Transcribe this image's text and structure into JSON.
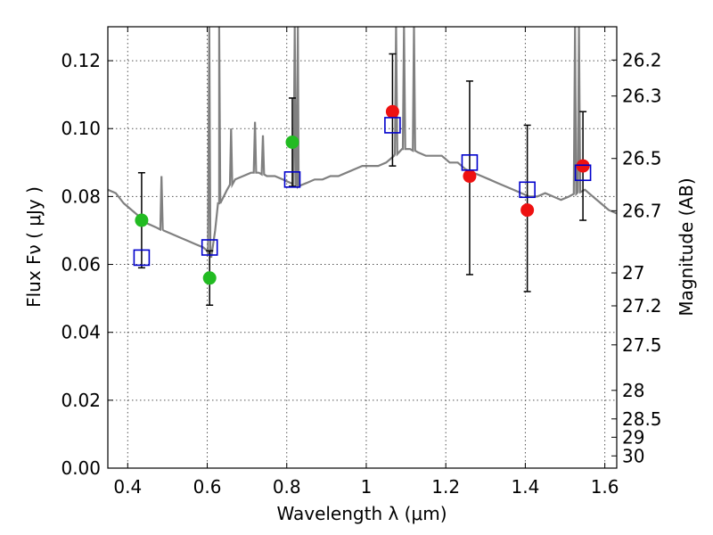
{
  "chart_data": {
    "type": "scatter",
    "title": "",
    "xlabel": "Wavelength  λ (μm)",
    "ylabel": "Flux  Fν  ( μJy )",
    "y2label": "Magnitude (AB)",
    "xlim": [
      0.35,
      1.63
    ],
    "ylim": [
      0.0,
      0.13
    ],
    "grid": true,
    "x_ticks": [
      0.4,
      0.6,
      0.8,
      1.0,
      1.2,
      1.4,
      1.6
    ],
    "x_tick_labels": [
      "0.4",
      "0.6",
      "0.8",
      "1",
      "1.2",
      "1.4",
      "1.6"
    ],
    "y_ticks": [
      0.0,
      0.02,
      0.04,
      0.06,
      0.08,
      0.1,
      0.12
    ],
    "y_tick_labels": [
      "0.00",
      "0.02",
      "0.04",
      "0.06",
      "0.08",
      "0.10",
      "0.12"
    ],
    "mag_ticks": [
      {
        "flux": 0.1202,
        "label": "26.2"
      },
      {
        "flux": 0.1096,
        "label": "26.3"
      },
      {
        "flux": 0.0912,
        "label": "26.5"
      },
      {
        "flux": 0.0758,
        "label": "26.7"
      },
      {
        "flux": 0.0575,
        "label": "27"
      },
      {
        "flux": 0.0478,
        "label": "27.2"
      },
      {
        "flux": 0.0363,
        "label": "27.5"
      },
      {
        "flux": 0.0229,
        "label": "28"
      },
      {
        "flux": 0.0145,
        "label": "28.5"
      },
      {
        "flux": 0.0091,
        "label": "29"
      },
      {
        "flux": 0.0036,
        "label": "30"
      }
    ],
    "colors": {
      "spectrum": "#808080",
      "green": "#22bb22",
      "red": "#ee1111",
      "model_box": "#0000cc",
      "errorbar": "#000000"
    },
    "spectrum": {
      "x": [
        0.35,
        0.37,
        0.39,
        0.41,
        0.43,
        0.45,
        0.47,
        0.49,
        0.51,
        0.53,
        0.55,
        0.57,
        0.59,
        0.6,
        0.61,
        0.62,
        0.63,
        0.65,
        0.67,
        0.69,
        0.71,
        0.73,
        0.75,
        0.77,
        0.79,
        0.81,
        0.83,
        0.85,
        0.87,
        0.89,
        0.91,
        0.93,
        0.95,
        0.97,
        0.99,
        1.01,
        1.03,
        1.05,
        1.07,
        1.09,
        1.11,
        1.13,
        1.15,
        1.17,
        1.19,
        1.21,
        1.23,
        1.25,
        1.27,
        1.29,
        1.31,
        1.33,
        1.35,
        1.37,
        1.39,
        1.41,
        1.43,
        1.45,
        1.47,
        1.49,
        1.51,
        1.53,
        1.55,
        1.57,
        1.59,
        1.61,
        1.63
      ],
      "y": [
        0.082,
        0.081,
        0.078,
        0.076,
        0.074,
        0.072,
        0.071,
        0.07,
        0.069,
        0.068,
        0.067,
        0.066,
        0.065,
        0.064,
        0.062,
        0.07,
        0.078,
        0.082,
        0.085,
        0.086,
        0.087,
        0.087,
        0.086,
        0.086,
        0.085,
        0.084,
        0.083,
        0.084,
        0.085,
        0.085,
        0.086,
        0.086,
        0.087,
        0.088,
        0.089,
        0.089,
        0.089,
        0.09,
        0.092,
        0.094,
        0.094,
        0.093,
        0.092,
        0.092,
        0.092,
        0.09,
        0.09,
        0.088,
        0.087,
        0.086,
        0.085,
        0.084,
        0.083,
        0.082,
        0.081,
        0.08,
        0.08,
        0.081,
        0.08,
        0.079,
        0.08,
        0.081,
        0.082,
        0.08,
        0.078,
        0.076,
        0.075
      ]
    },
    "spectrum_spikes": [
      {
        "x": 0.485,
        "y": 0.086
      },
      {
        "x": 0.605,
        "y": 0.13
      },
      {
        "x": 0.63,
        "y": 0.13
      },
      {
        "x": 0.66,
        "y": 0.1
      },
      {
        "x": 0.72,
        "y": 0.102
      },
      {
        "x": 0.74,
        "y": 0.098
      },
      {
        "x": 0.82,
        "y": 0.13
      },
      {
        "x": 0.828,
        "y": 0.13
      },
      {
        "x": 1.075,
        "y": 0.13
      },
      {
        "x": 1.095,
        "y": 0.13
      },
      {
        "x": 1.12,
        "y": 0.13
      },
      {
        "x": 1.525,
        "y": 0.13
      },
      {
        "x": 1.535,
        "y": 0.13
      }
    ],
    "series": [
      {
        "kind": "green",
        "points": [
          {
            "x": 0.435,
            "y": 0.073,
            "ylo": 0.059,
            "yhi": 0.087
          },
          {
            "x": 0.606,
            "y": 0.056,
            "ylo": 0.048,
            "yhi": 0.064
          },
          {
            "x": 0.814,
            "y": 0.096,
            "ylo": 0.083,
            "yhi": 0.109
          }
        ]
      },
      {
        "kind": "red",
        "points": [
          {
            "x": 1.066,
            "y": 0.105,
            "ylo": 0.089,
            "yhi": 0.122
          },
          {
            "x": 1.26,
            "y": 0.086,
            "ylo": 0.057,
            "yhi": 0.114
          },
          {
            "x": 1.405,
            "y": 0.076,
            "ylo": 0.052,
            "yhi": 0.101
          },
          {
            "x": 1.545,
            "y": 0.089,
            "ylo": 0.073,
            "yhi": 0.105
          }
        ]
      }
    ],
    "model_points": [
      {
        "x": 0.435,
        "y": 0.062
      },
      {
        "x": 0.606,
        "y": 0.065
      },
      {
        "x": 0.814,
        "y": 0.085
      },
      {
        "x": 1.066,
        "y": 0.101
      },
      {
        "x": 1.26,
        "y": 0.09
      },
      {
        "x": 1.405,
        "y": 0.082
      },
      {
        "x": 1.545,
        "y": 0.087
      }
    ]
  }
}
